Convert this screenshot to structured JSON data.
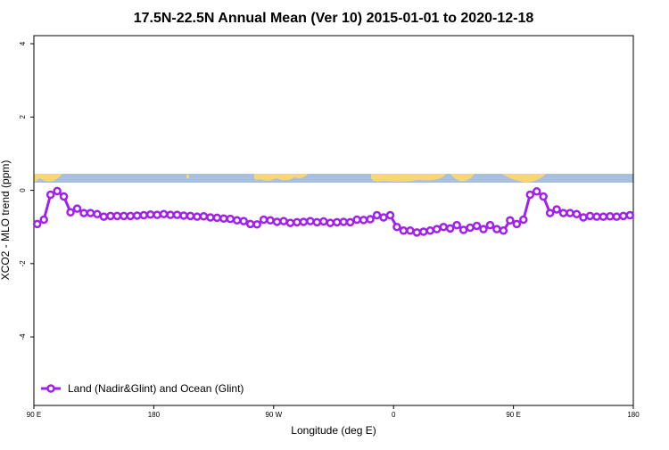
{
  "chart_data": {
    "type": "line",
    "title": "17.5N-22.5N Annual Mean (Ver 10)   2015-01-01 to 2020-12-18",
    "x_label": "Longitude (deg E)",
    "y_label": "XCO2 - MLO trend (ppm)",
    "xlim": [
      90,
      540
    ],
    "ylim": [
      -5.87,
      4.22
    ],
    "xticks": [
      {
        "value": 90,
        "label": "90 E"
      },
      180,
      {
        "value": 270,
        "label": "90 W"
      },
      {
        "value": 360,
        "label": "0"
      },
      {
        "value": 450,
        "label": "90 E"
      },
      {
        "value": 540,
        "label": "180"
      }
    ],
    "yticks": [
      -4,
      -2,
      0,
      2,
      4
    ],
    "legend": "bottom-left",
    "x": [
      92.5,
      97.5,
      102.5,
      107.5,
      112.5,
      117.5,
      122.5,
      127.5,
      132.5,
      137.5,
      142.5,
      147.5,
      152.5,
      157.5,
      162.5,
      167.5,
      172.5,
      177.5,
      182.5,
      187.5,
      192.5,
      197.5,
      202.5,
      207.5,
      212.5,
      217.5,
      222.5,
      227.5,
      232.5,
      237.5,
      242.5,
      247.5,
      252.5,
      257.5,
      262.5,
      267.5,
      272.5,
      277.5,
      282.5,
      287.5,
      292.5,
      297.5,
      302.5,
      307.5,
      312.5,
      317.5,
      322.5,
      327.5,
      332.5,
      337.5,
      342.5,
      347.5,
      352.5,
      357.5,
      362.5,
      367.5,
      372.5,
      377.5,
      382.5,
      387.5,
      392.5,
      397.5,
      402.5,
      407.5,
      412.5,
      417.5,
      422.5,
      427.5,
      432.5,
      437.5,
      442.5,
      447.5,
      452.5,
      457.5,
      462.5,
      467.5,
      472.5,
      477.5,
      482.5,
      487.5,
      492.5,
      497.5,
      502.5,
      507.5,
      512.5,
      517.5,
      522.5,
      527.5,
      532.5,
      537.5
    ],
    "series": [
      {
        "name": "Land (Nadir&Glint) and Ocean (Glint)",
        "color": "#a020f0",
        "values": [
          -0.92,
          -0.8,
          -0.12,
          -0.02,
          -0.17,
          -0.6,
          -0.5,
          -0.62,
          -0.62,
          -0.65,
          -0.72,
          -0.7,
          -0.7,
          -0.7,
          -0.7,
          -0.69,
          -0.68,
          -0.66,
          -0.67,
          -0.65,
          -0.67,
          -0.67,
          -0.69,
          -0.7,
          -0.72,
          -0.71,
          -0.74,
          -0.75,
          -0.77,
          -0.78,
          -0.82,
          -0.84,
          -0.92,
          -0.93,
          -0.8,
          -0.82,
          -0.86,
          -0.84,
          -0.89,
          -0.87,
          -0.86,
          -0.84,
          -0.87,
          -0.85,
          -0.89,
          -0.87,
          -0.86,
          -0.87,
          -0.8,
          -0.81,
          -0.79,
          -0.68,
          -0.74,
          -0.68,
          -1.0,
          -1.1,
          -1.1,
          -1.15,
          -1.13,
          -1.1,
          -1.06,
          -1.0,
          -1.04,
          -0.95,
          -1.08,
          -1.02,
          -0.97,
          -1.06,
          -0.95,
          -1.06,
          -1.1,
          -0.82,
          -0.92,
          -0.8,
          -0.12,
          -0.03,
          -0.17,
          -0.62,
          -0.52,
          -0.62,
          -0.62,
          -0.65,
          -0.74,
          -0.7,
          -0.72,
          -0.72,
          -0.71,
          -0.72,
          -0.7,
          -0.68
        ]
      }
    ]
  }
}
